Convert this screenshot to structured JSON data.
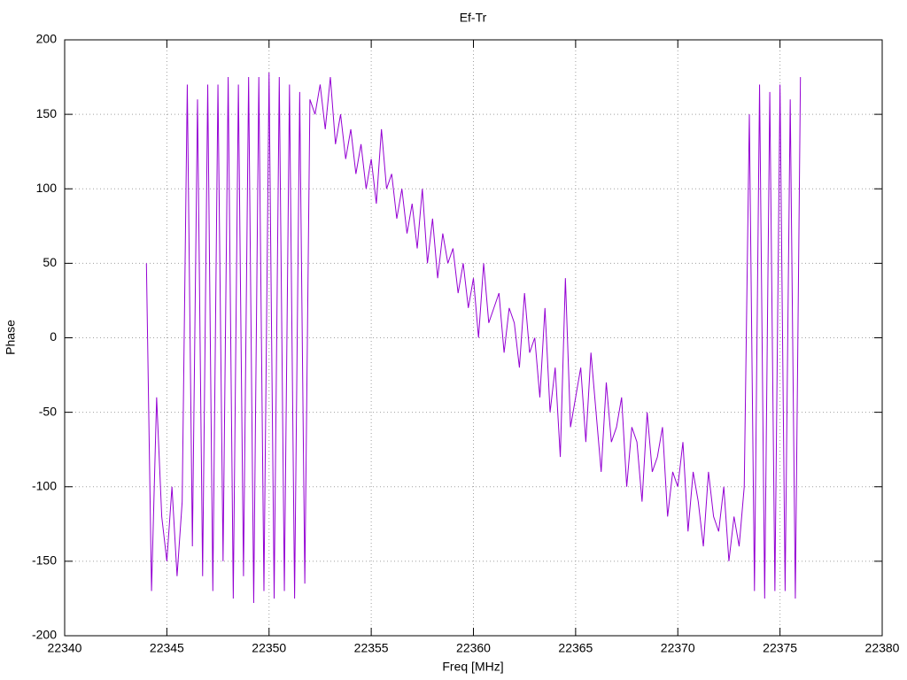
{
  "chart_data": {
    "type": "line",
    "title": "Ef-Tr",
    "x_label": "Freq [MHz]",
    "y_label": "Phase",
    "x": [
      22344,
      22344.25,
      22344.5,
      22344.75,
      22345,
      22345.25,
      22345.5,
      22345.75,
      22346,
      22346.25,
      22346.5,
      22346.75,
      22347,
      22347.25,
      22347.5,
      22347.75,
      22348,
      22348.25,
      22348.5,
      22348.75,
      22349,
      22349.25,
      22349.5,
      22349.75,
      22350,
      22350.25,
      22350.5,
      22350.75,
      22351,
      22351.25,
      22351.5,
      22351.75,
      22352,
      22352.25,
      22352.5,
      22352.75,
      22353,
      22353.25,
      22353.5,
      22353.75,
      22354,
      22354.25,
      22354.5,
      22354.75,
      22355,
      22355.25,
      22355.5,
      22355.75,
      22356,
      22356.25,
      22356.5,
      22356.75,
      22357,
      22357.25,
      22357.5,
      22357.75,
      22358,
      22358.25,
      22358.5,
      22358.75,
      22359,
      22359.25,
      22359.5,
      22359.75,
      22360,
      22360.25,
      22360.5,
      22360.75,
      22361,
      22361.25,
      22361.5,
      22361.75,
      22362,
      22362.25,
      22362.5,
      22362.75,
      22363,
      22363.25,
      22363.5,
      22363.75,
      22364,
      22364.25,
      22364.5,
      22364.75,
      22365,
      22365.25,
      22365.5,
      22365.75,
      22366,
      22366.25,
      22366.5,
      22366.75,
      22367,
      22367.25,
      22367.5,
      22367.75,
      22368,
      22368.25,
      22368.5,
      22368.75,
      22369,
      22369.25,
      22369.5,
      22369.75,
      22370,
      22370.25,
      22370.5,
      22370.75,
      22371,
      22371.25,
      22371.5,
      22371.75,
      22372,
      22372.25,
      22372.5,
      22372.75,
      22373,
      22373.25,
      22373.5,
      22373.75,
      22374,
      22374.25,
      22374.5,
      22374.75,
      22375,
      22375.25,
      22375.5,
      22375.75,
      22376
    ],
    "series": [
      {
        "name": "Ef-Tr",
        "color": "#9400d3",
        "values": [
          50,
          -170,
          -40,
          -120,
          -150,
          -100,
          -160,
          -110,
          170,
          -140,
          160,
          -160,
          170,
          -170,
          170,
          -150,
          175,
          -175,
          170,
          -160,
          175,
          -178,
          175,
          -170,
          178,
          -175,
          175,
          -170,
          170,
          -175,
          165,
          -165,
          160,
          150,
          170,
          140,
          175,
          130,
          150,
          120,
          140,
          110,
          130,
          100,
          120,
          90,
          140,
          100,
          110,
          80,
          100,
          70,
          90,
          60,
          100,
          50,
          80,
          40,
          70,
          50,
          60,
          30,
          50,
          20,
          40,
          0,
          50,
          10,
          20,
          30,
          -10,
          20,
          10,
          -20,
          30,
          -10,
          0,
          -40,
          20,
          -50,
          -20,
          -80,
          40,
          -60,
          -40,
          -20,
          -70,
          -10,
          -50,
          -90,
          -30,
          -70,
          -60,
          -40,
          -100,
          -60,
          -70,
          -110,
          -50,
          -90,
          -80,
          -60,
          -120,
          -90,
          -100,
          -70,
          -130,
          -90,
          -110,
          -140,
          -90,
          -120,
          -130,
          -100,
          -150,
          -120,
          -140,
          -100,
          150,
          -170,
          170,
          -175,
          165,
          -170,
          170,
          -170,
          160,
          -175,
          175
        ]
      }
    ],
    "xlim": [
      22340,
      22380
    ],
    "ylim": [
      -200,
      200
    ],
    "xticks": [
      22340,
      22345,
      22350,
      22355,
      22360,
      22365,
      22370,
      22375,
      22380
    ],
    "yticks": [
      -200,
      -150,
      -100,
      -50,
      0,
      50,
      100,
      150,
      200
    ],
    "grid": true
  }
}
